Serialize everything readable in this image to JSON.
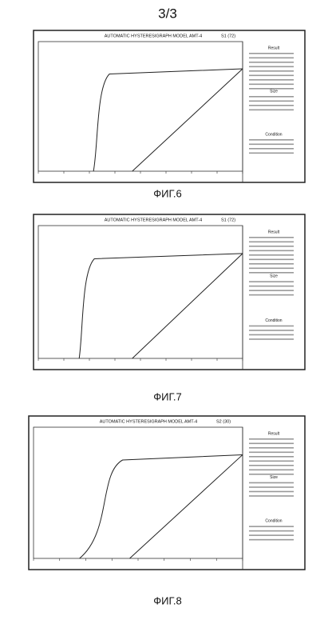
{
  "page": {
    "number": "3/3"
  },
  "figures": [
    {
      "title": "AUTOMATIC HYSTERESIGRAPH MODEL AMT-4",
      "tag": "S1 (72)",
      "caption": "ФИГ.6",
      "panel": [
        "Result",
        "Size",
        "Condition"
      ]
    },
    {
      "title": "AUTOMATIC HYSTERESIGRAPH MODEL AMT-4",
      "tag": "S1 (72)",
      "caption": "ФИГ.7",
      "panel": [
        "Result",
        "Size",
        "Condition"
      ]
    },
    {
      "title": "AUTOMATIC HYSTERESIGRAPH MODEL AMT-4",
      "tag": "S2 (30)",
      "caption": "ФИГ.8",
      "panel": [
        "Result",
        "Size",
        "Condition"
      ]
    }
  ]
}
